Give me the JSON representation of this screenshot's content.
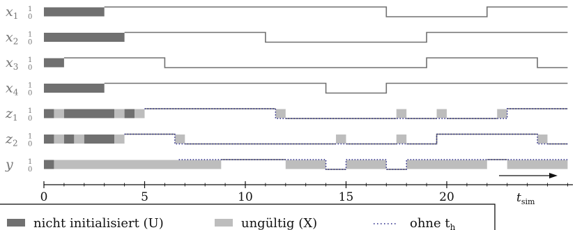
{
  "time_axis": {
    "min": 0,
    "max": 26,
    "ticks": [
      0,
      5,
      10,
      15,
      20
    ],
    "label": "t",
    "label_sub": "sim"
  },
  "level_labels": {
    "high": "1",
    "low": "0"
  },
  "colors": {
    "undefined": "#707070",
    "invalid": "#bdbdbd",
    "wave": "#707070",
    "dotted": "#2a2a8a",
    "axis": "#111111"
  },
  "signals": [
    {
      "name": "x",
      "sub": "1",
      "segments": [
        {
          "t0": 0,
          "t1": 3,
          "state": "U"
        },
        {
          "t0": 3,
          "t1": 17,
          "state": "1"
        },
        {
          "t0": 17,
          "t1": 22,
          "state": "0"
        },
        {
          "t0": 22,
          "t1": 26,
          "state": "1"
        }
      ]
    },
    {
      "name": "x",
      "sub": "2",
      "segments": [
        {
          "t0": 0,
          "t1": 4,
          "state": "U"
        },
        {
          "t0": 4,
          "t1": 11,
          "state": "1"
        },
        {
          "t0": 11,
          "t1": 19,
          "state": "0"
        },
        {
          "t0": 19,
          "t1": 26,
          "state": "1"
        }
      ]
    },
    {
      "name": "x",
      "sub": "3",
      "segments": [
        {
          "t0": 0,
          "t1": 1,
          "state": "U"
        },
        {
          "t0": 1,
          "t1": 6,
          "state": "1"
        },
        {
          "t0": 6,
          "t1": 19,
          "state": "0"
        },
        {
          "t0": 19,
          "t1": 24.5,
          "state": "1"
        },
        {
          "t0": 24.5,
          "t1": 26,
          "state": "0"
        }
      ]
    },
    {
      "name": "x",
      "sub": "4",
      "segments": [
        {
          "t0": 0,
          "t1": 3,
          "state": "U"
        },
        {
          "t0": 3,
          "t1": 14,
          "state": "1"
        },
        {
          "t0": 14,
          "t1": 17,
          "state": "0"
        },
        {
          "t0": 17,
          "t1": 26,
          "state": "1"
        }
      ]
    },
    {
      "name": "z",
      "sub": "1",
      "segments": [
        {
          "t0": 0,
          "t1": 0.5,
          "state": "U"
        },
        {
          "t0": 0.5,
          "t1": 1,
          "state": "X"
        },
        {
          "t0": 1,
          "t1": 3.5,
          "state": "U"
        },
        {
          "t0": 3.5,
          "t1": 4,
          "state": "X"
        },
        {
          "t0": 4,
          "t1": 4.5,
          "state": "U"
        },
        {
          "t0": 4.5,
          "t1": 5,
          "state": "X"
        },
        {
          "t0": 5,
          "t1": 11.5,
          "state": "1"
        },
        {
          "t0": 11.5,
          "t1": 12,
          "state": "X"
        },
        {
          "t0": 12,
          "t1": 17.5,
          "state": "0"
        },
        {
          "t0": 17.5,
          "t1": 18,
          "state": "X"
        },
        {
          "t0": 18,
          "t1": 19.5,
          "state": "0"
        },
        {
          "t0": 19.5,
          "t1": 20,
          "state": "X"
        },
        {
          "t0": 20,
          "t1": 22.5,
          "state": "0"
        },
        {
          "t0": 22.5,
          "t1": 23,
          "state": "X"
        },
        {
          "t0": 23,
          "t1": 26,
          "state": "1"
        }
      ],
      "dotted": [
        {
          "t0": 5,
          "t1": 11.5,
          "level": "1"
        },
        {
          "t0": 11.5,
          "t1": 23,
          "level": "0"
        },
        {
          "t0": 23,
          "t1": 26,
          "level": "1"
        }
      ]
    },
    {
      "name": "z",
      "sub": "2",
      "segments": [
        {
          "t0": 0,
          "t1": 0.5,
          "state": "U"
        },
        {
          "t0": 0.5,
          "t1": 1,
          "state": "X"
        },
        {
          "t0": 1,
          "t1": 1.5,
          "state": "U"
        },
        {
          "t0": 1.5,
          "t1": 2,
          "state": "X"
        },
        {
          "t0": 2,
          "t1": 3.5,
          "state": "U"
        },
        {
          "t0": 3.5,
          "t1": 4,
          "state": "X"
        },
        {
          "t0": 4,
          "t1": 6.5,
          "state": "1"
        },
        {
          "t0": 6.5,
          "t1": 7,
          "state": "X"
        },
        {
          "t0": 7,
          "t1": 14.5,
          "state": "0"
        },
        {
          "t0": 14.5,
          "t1": 15,
          "state": "X"
        },
        {
          "t0": 15,
          "t1": 17.5,
          "state": "0"
        },
        {
          "t0": 17.5,
          "t1": 18,
          "state": "X"
        },
        {
          "t0": 18,
          "t1": 19.5,
          "state": "0"
        },
        {
          "t0": 19.5,
          "t1": 24.5,
          "state": "1"
        },
        {
          "t0": 24.5,
          "t1": 25,
          "state": "X"
        },
        {
          "t0": 25,
          "t1": 26,
          "state": "0"
        }
      ],
      "dotted": [
        {
          "t0": 4,
          "t1": 6.5,
          "level": "1"
        },
        {
          "t0": 6.5,
          "t1": 19.5,
          "level": "0"
        },
        {
          "t0": 19.5,
          "t1": 24.5,
          "level": "1"
        },
        {
          "t0": 24.5,
          "t1": 26,
          "level": "0"
        }
      ]
    },
    {
      "name": "y",
      "sub": "",
      "segments": [
        {
          "t0": 0,
          "t1": 0.5,
          "state": "U"
        },
        {
          "t0": 0.5,
          "t1": 8.8,
          "state": "X"
        },
        {
          "t0": 8.8,
          "t1": 12,
          "state": "1"
        },
        {
          "t0": 12,
          "t1": 14,
          "state": "X"
        },
        {
          "t0": 14,
          "t1": 15,
          "state": "0"
        },
        {
          "t0": 15,
          "t1": 17,
          "state": "X"
        },
        {
          "t0": 17,
          "t1": 18,
          "state": "0"
        },
        {
          "t0": 18,
          "t1": 22,
          "state": "X"
        },
        {
          "t0": 22,
          "t1": 23,
          "state": "1"
        },
        {
          "t0": 23,
          "t1": 26,
          "state": "X"
        }
      ],
      "dotted": [
        {
          "t0": 6.7,
          "t1": 14,
          "level": "1"
        },
        {
          "t0": 14,
          "t1": 15,
          "level": "0"
        },
        {
          "t0": 15,
          "t1": 17,
          "level": "1"
        },
        {
          "t0": 17,
          "t1": 18,
          "level": "0"
        },
        {
          "t0": 18,
          "t1": 26,
          "level": "1"
        }
      ]
    }
  ],
  "legend": {
    "undefined_label": "nicht initialisiert (U)",
    "invalid_label": "ungültig (X)",
    "dotted_label": "ohne t",
    "dotted_label_sub": "h"
  }
}
